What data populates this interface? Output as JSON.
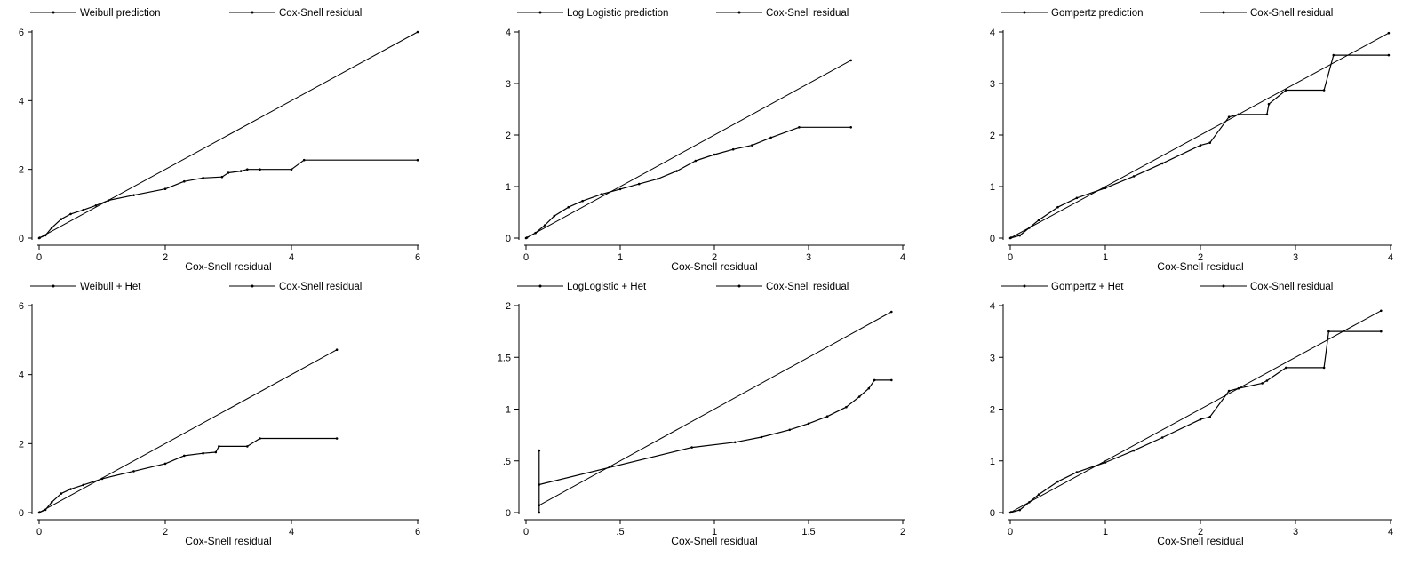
{
  "chart_data": [
    {
      "type": "line",
      "legend": [
        "Weibull prediction",
        "Cox-Snell residual"
      ],
      "xlabel": "Cox-Snell residual",
      "ylabel": "",
      "xlim": [
        0,
        6
      ],
      "ylim": [
        0,
        6
      ],
      "xticks": [
        0,
        2,
        4,
        6
      ],
      "xtick_labels": [
        "0",
        "2",
        "4",
        "6"
      ],
      "yticks": [
        0,
        2,
        4,
        6
      ],
      "ytick_labels": [
        "0",
        "2",
        "4",
        "6"
      ],
      "series": [
        {
          "x": [
            0.01,
            6.0
          ],
          "y": [
            0.01,
            6.0
          ]
        },
        {
          "x": [
            0,
            0.1,
            0.2,
            0.35,
            0.5,
            0.7,
            0.9,
            1.1,
            1.5,
            2.0,
            2.3,
            2.6,
            2.9,
            3.0,
            3.2,
            3.3,
            3.5,
            4.0,
            4.2,
            6.0
          ],
          "y": [
            0,
            0.08,
            0.3,
            0.55,
            0.7,
            0.82,
            0.95,
            1.1,
            1.25,
            1.43,
            1.65,
            1.75,
            1.78,
            1.9,
            1.95,
            2.0,
            2.0,
            2.0,
            2.27,
            2.27
          ]
        }
      ]
    },
    {
      "type": "line",
      "legend": [
        "Log Logistic prediction",
        "Cox-Snell residual"
      ],
      "xlabel": "Cox-Snell residual",
      "ylabel": "",
      "xlim": [
        0,
        4
      ],
      "ylim": [
        0,
        4
      ],
      "xticks": [
        0,
        1,
        2,
        3,
        4
      ],
      "xtick_labels": [
        "0",
        "1",
        "2",
        "3",
        "4"
      ],
      "yticks": [
        0,
        1,
        2,
        3,
        4
      ],
      "ytick_labels": [
        "0",
        "1",
        "2",
        "3",
        "4"
      ],
      "series": [
        {
          "x": [
            0.01,
            3.45
          ],
          "y": [
            0.01,
            3.45
          ]
        },
        {
          "x": [
            0,
            0.1,
            0.2,
            0.3,
            0.45,
            0.6,
            0.8,
            1.0,
            1.2,
            1.4,
            1.6,
            1.8,
            2.0,
            2.2,
            2.4,
            2.6,
            2.9,
            3.45
          ],
          "y": [
            0,
            0.1,
            0.25,
            0.43,
            0.6,
            0.72,
            0.85,
            0.95,
            1.05,
            1.15,
            1.3,
            1.5,
            1.62,
            1.72,
            1.8,
            1.95,
            2.15,
            2.15
          ]
        }
      ]
    },
    {
      "type": "line",
      "legend": [
        "Gompertz prediction",
        "Cox-Snell residual"
      ],
      "xlabel": "Cox-Snell residual",
      "ylabel": "",
      "xlim": [
        0,
        4
      ],
      "ylim": [
        0,
        4
      ],
      "xticks": [
        0,
        1,
        2,
        3,
        4
      ],
      "xtick_labels": [
        "0",
        "1",
        "2",
        "3",
        "4"
      ],
      "yticks": [
        0,
        1,
        2,
        3,
        4
      ],
      "ytick_labels": [
        "0",
        "1",
        "2",
        "3",
        "4"
      ],
      "series": [
        {
          "x": [
            0.01,
            3.98
          ],
          "y": [
            0.01,
            3.98
          ]
        },
        {
          "x": [
            0,
            0.1,
            0.2,
            0.3,
            0.5,
            0.7,
            1.0,
            1.3,
            1.6,
            2.0,
            2.1,
            2.3,
            2.4,
            2.7,
            2.72,
            2.9,
            3.3,
            3.4,
            3.98
          ],
          "y": [
            0,
            0.05,
            0.2,
            0.35,
            0.6,
            0.78,
            0.97,
            1.2,
            1.45,
            1.8,
            1.85,
            2.35,
            2.4,
            2.4,
            2.6,
            2.87,
            2.87,
            3.55,
            3.55
          ]
        }
      ]
    },
    {
      "type": "line",
      "legend": [
        "Weibull + Het",
        "Cox-Snell residual"
      ],
      "xlabel": "Cox-Snell residual",
      "ylabel": "",
      "xlim": [
        0,
        6
      ],
      "ylim": [
        0,
        6
      ],
      "xticks": [
        0,
        2,
        4,
        6
      ],
      "xtick_labels": [
        "0",
        "2",
        "4",
        "6"
      ],
      "yticks": [
        0,
        2,
        4,
        6
      ],
      "ytick_labels": [
        "0",
        "2",
        "4",
        "6"
      ],
      "series": [
        {
          "x": [
            0.01,
            4.72
          ],
          "y": [
            0.01,
            4.72
          ]
        },
        {
          "x": [
            0,
            0.1,
            0.2,
            0.35,
            0.5,
            0.7,
            1.0,
            1.5,
            2.0,
            2.3,
            2.6,
            2.8,
            2.85,
            3.3,
            3.5,
            4.72
          ],
          "y": [
            0,
            0.08,
            0.3,
            0.55,
            0.68,
            0.8,
            0.98,
            1.2,
            1.42,
            1.65,
            1.72,
            1.75,
            1.92,
            1.92,
            2.15,
            2.15
          ]
        }
      ]
    },
    {
      "type": "line",
      "legend": [
        "LogLogistic + Het",
        "Cox-Snell residual"
      ],
      "xlabel": "Cox-Snell residual",
      "ylabel": "",
      "xlim": [
        0,
        2
      ],
      "ylim": [
        0,
        2
      ],
      "xticks": [
        0,
        0.5,
        1,
        1.5,
        2
      ],
      "xtick_labels": [
        "0",
        ".5",
        "1",
        "1.5",
        "2"
      ],
      "yticks": [
        0,
        0.5,
        1,
        1.5,
        2
      ],
      "ytick_labels": [
        "0",
        ".5",
        "1",
        "1.5",
        "2"
      ],
      "series": [
        {
          "x": [
            0.07,
            1.94
          ],
          "y": [
            0.07,
            1.94
          ]
        },
        {
          "x": [
            0.07,
            0.07,
            0.07,
            0.88,
            1.11,
            1.25,
            1.4,
            1.5,
            1.6,
            1.7,
            1.77,
            1.82,
            1.85,
            1.94
          ],
          "y": [
            0.0,
            0.6,
            0.27,
            0.63,
            0.68,
            0.73,
            0.8,
            0.86,
            0.93,
            1.02,
            1.12,
            1.2,
            1.28,
            1.28
          ]
        }
      ]
    },
    {
      "type": "line",
      "legend": [
        "Gompertz + Het",
        "Cox-Snell residual"
      ],
      "xlabel": "Cox-Snell residual",
      "ylabel": "",
      "xlim": [
        0,
        4
      ],
      "ylim": [
        0,
        4
      ],
      "xticks": [
        0,
        1,
        2,
        3,
        4
      ],
      "xtick_labels": [
        "0",
        "1",
        "2",
        "3",
        "4"
      ],
      "yticks": [
        0,
        1,
        2,
        3,
        4
      ],
      "ytick_labels": [
        "0",
        "1",
        "2",
        "3",
        "4"
      ],
      "series": [
        {
          "x": [
            0.01,
            3.9
          ],
          "y": [
            0.01,
            3.9
          ]
        },
        {
          "x": [
            0,
            0.1,
            0.2,
            0.3,
            0.5,
            0.7,
            1.0,
            1.3,
            1.6,
            2.0,
            2.1,
            2.3,
            2.4,
            2.65,
            2.7,
            2.9,
            3.3,
            3.35,
            3.9
          ],
          "y": [
            0,
            0.05,
            0.2,
            0.35,
            0.6,
            0.78,
            0.97,
            1.2,
            1.45,
            1.8,
            1.85,
            2.35,
            2.4,
            2.5,
            2.55,
            2.8,
            2.8,
            3.5,
            3.5
          ]
        }
      ]
    }
  ]
}
